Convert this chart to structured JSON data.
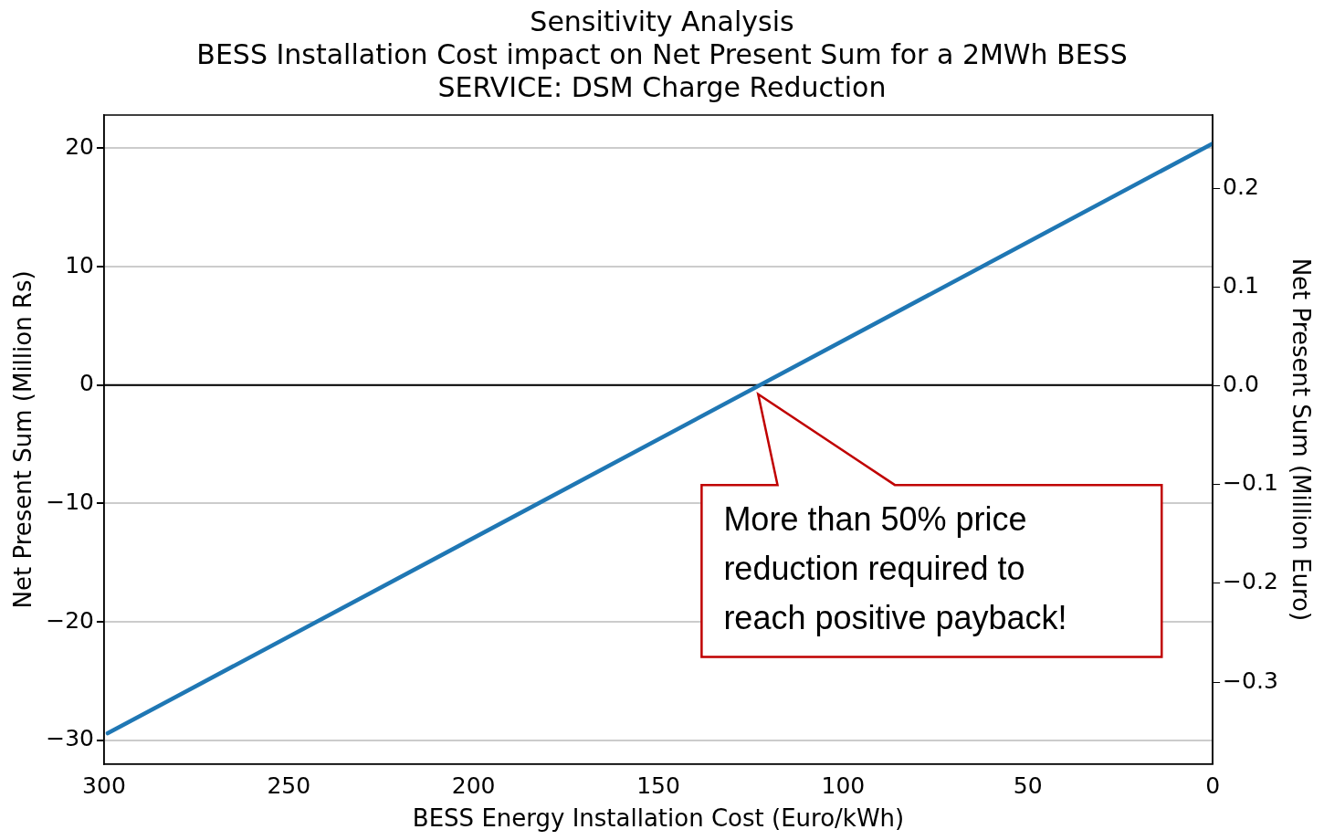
{
  "chart_data": {
    "type": "line",
    "title": "Sensitivity Analysis",
    "subtitle": "BESS Installation Cost impact on Net Present Sum for a 2MWh BESS\nSERVICE: DSM Charge Reduction",
    "xlabel": "BESS Energy Installation Cost (Euro/kWh)",
    "ylabel": "Net Present Sum (Million Rs)",
    "y2label": "Net Present Sum (Million Euro)",
    "series": [
      {
        "color": "#1f77b4",
        "x": [
          299,
          0
        ],
        "values": [
          -29.4,
          20.4
        ]
      }
    ],
    "xlim": [
      300,
      0
    ],
    "xticks": [
      300,
      250,
      200,
      150,
      100,
      50,
      0
    ],
    "ylim": [
      -32,
      22.8
    ],
    "yticks": [
      -30,
      -20,
      -10,
      0,
      10,
      20
    ],
    "y2lim": [
      -0.383,
      0.274
    ],
    "y2ticks": [
      {
        "value": -0.3,
        "label": "−0.3"
      },
      {
        "value": -0.2,
        "label": "−0.2"
      },
      {
        "value": -0.1,
        "label": "−0.1"
      },
      {
        "value": 0,
        "label": "0.0"
      },
      {
        "value": 0.1,
        "label": "0.1"
      },
      {
        "value": 0.2,
        "label": "0.2"
      }
    ],
    "ref_lines": [
      {
        "axis": "y",
        "value": 0,
        "color": "#000000"
      }
    ],
    "annotations": [
      "More than 50% price\nreduction required to\nreach positive payback!"
    ],
    "grid": "y",
    "legend": false,
    "marker": "none",
    "line_style": "solid"
  }
}
